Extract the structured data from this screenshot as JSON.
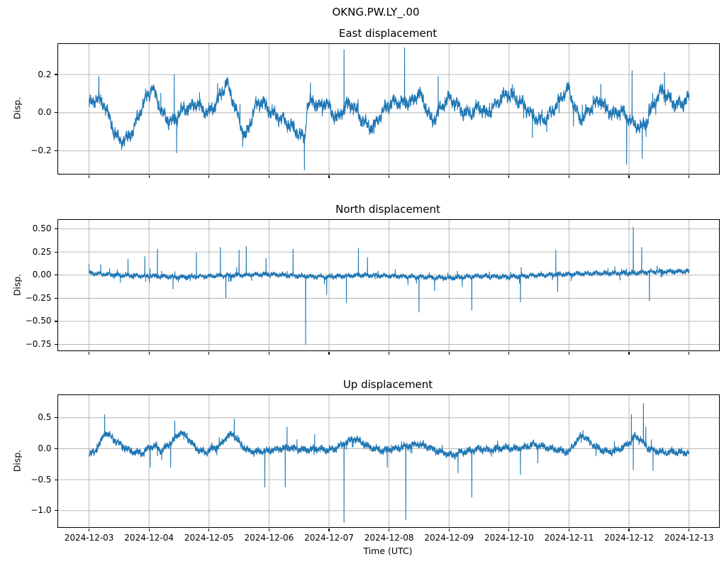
{
  "figure": {
    "suptitle": "OKNG.PW.LY_.00",
    "xlabel": "Time (UTC)",
    "samples": 5500,
    "x_unit": "days since 2024-12-03 00:00 UTC",
    "xlim": [
      -0.515,
      10.5
    ],
    "xticks": [
      {
        "pos": 0,
        "label": "2024-12-03"
      },
      {
        "pos": 1,
        "label": "2024-12-04"
      },
      {
        "pos": 2,
        "label": "2024-12-05"
      },
      {
        "pos": 3,
        "label": "2024-12-06"
      },
      {
        "pos": 4,
        "label": "2024-12-07"
      },
      {
        "pos": 5,
        "label": "2024-12-08"
      },
      {
        "pos": 6,
        "label": "2024-12-09"
      },
      {
        "pos": 7,
        "label": "2024-12-10"
      },
      {
        "pos": 8,
        "label": "2024-12-11"
      },
      {
        "pos": 9,
        "label": "2024-12-12"
      },
      {
        "pos": 10,
        "label": "2024-12-13"
      }
    ],
    "colors": {
      "line": "#1f77b4",
      "grid": "#b0b0b0",
      "spine": "#000000",
      "background": "#ffffff"
    },
    "grid": true,
    "legend": false
  },
  "chart_data": [
    {
      "type": "line",
      "name": "east-displacement",
      "title": "East displacement",
      "ylabel": "Disp.",
      "xlabel": "",
      "ylim": [
        -0.32,
        0.36
      ],
      "yticks": [
        {
          "pos": 0.2,
          "label": "0.2"
        },
        {
          "pos": 0.0,
          "label": "0.0"
        },
        {
          "pos": -0.2,
          "label": "−0.2"
        }
      ],
      "series": {
        "seed": 101,
        "noise": {
          "hf": 0.02,
          "wob": 0.016,
          "hair_p": 0.01,
          "hair_amp": 0.09
        },
        "anchors": [
          [
            0,
            0.05
          ],
          [
            0.12,
            0.07
          ],
          [
            0.22,
            0.06
          ],
          [
            0.3,
            0.01
          ],
          [
            0.42,
            -0.1
          ],
          [
            0.52,
            -0.15
          ],
          [
            0.62,
            -0.14
          ],
          [
            0.72,
            -0.1
          ],
          [
            0.82,
            -0.02
          ],
          [
            0.95,
            0.08
          ],
          [
            1.05,
            0.13
          ],
          [
            1.12,
            0.08
          ],
          [
            1.22,
            0.0
          ],
          [
            1.32,
            -0.04
          ],
          [
            1.42,
            -0.05
          ],
          [
            1.5,
            0.0
          ],
          [
            1.6,
            0.02
          ],
          [
            1.7,
            0.03
          ],
          [
            1.8,
            0.05
          ],
          [
            1.9,
            0.01
          ],
          [
            2.0,
            0.0
          ],
          [
            2.1,
            0.04
          ],
          [
            2.2,
            0.1
          ],
          [
            2.3,
            0.16
          ],
          [
            2.38,
            0.08
          ],
          [
            2.5,
            -0.04
          ],
          [
            2.6,
            -0.13
          ],
          [
            2.68,
            -0.06
          ],
          [
            2.78,
            0.04
          ],
          [
            2.88,
            0.06
          ],
          [
            2.98,
            0.02
          ],
          [
            3.1,
            -0.01
          ],
          [
            3.25,
            -0.04
          ],
          [
            3.4,
            -0.08
          ],
          [
            3.52,
            -0.12
          ],
          [
            3.6,
            -0.13
          ],
          [
            3.63,
            0.03
          ],
          [
            3.72,
            0.06
          ],
          [
            3.85,
            0.03
          ],
          [
            3.95,
            0.06
          ],
          [
            4.05,
            0.0
          ],
          [
            4.15,
            -0.03
          ],
          [
            4.28,
            0.04
          ],
          [
            4.4,
            0.04
          ],
          [
            4.5,
            -0.02
          ],
          [
            4.62,
            -0.06
          ],
          [
            4.72,
            -0.08
          ],
          [
            4.85,
            -0.02
          ],
          [
            4.95,
            0.03
          ],
          [
            5.1,
            0.06
          ],
          [
            5.25,
            0.05
          ],
          [
            5.4,
            0.06
          ],
          [
            5.5,
            0.11
          ],
          [
            5.6,
            0.04
          ],
          [
            5.72,
            -0.05
          ],
          [
            5.85,
            0.02
          ],
          [
            6.0,
            0.08
          ],
          [
            6.1,
            0.05
          ],
          [
            6.25,
            0.0
          ],
          [
            6.4,
            0.0
          ],
          [
            6.5,
            0.04
          ],
          [
            6.62,
            -0.01
          ],
          [
            6.75,
            0.03
          ],
          [
            6.88,
            0.08
          ],
          [
            7.0,
            0.1
          ],
          [
            7.12,
            0.07
          ],
          [
            7.25,
            0.04
          ],
          [
            7.38,
            -0.01
          ],
          [
            7.5,
            -0.04
          ],
          [
            7.62,
            -0.03
          ],
          [
            7.75,
            0.02
          ],
          [
            7.88,
            0.08
          ],
          [
            7.98,
            0.13
          ],
          [
            8.08,
            0.04
          ],
          [
            8.18,
            -0.04
          ],
          [
            8.3,
            0.0
          ],
          [
            8.42,
            0.04
          ],
          [
            8.52,
            0.07
          ],
          [
            8.62,
            0.02
          ],
          [
            8.75,
            -0.01
          ],
          [
            8.88,
            0.01
          ],
          [
            8.98,
            -0.03
          ],
          [
            9.1,
            -0.06
          ],
          [
            9.2,
            -0.08
          ],
          [
            9.3,
            -0.04
          ],
          [
            9.42,
            0.05
          ],
          [
            9.55,
            0.12
          ],
          [
            9.65,
            0.08
          ],
          [
            9.78,
            0.04
          ],
          [
            9.9,
            0.05
          ],
          [
            10,
            0.08
          ]
        ],
        "spikes": [
          [
            1.42,
            0.2
          ],
          [
            1.46,
            -0.21
          ],
          [
            3.59,
            -0.3
          ],
          [
            4.25,
            0.33
          ],
          [
            5.26,
            0.34
          ],
          [
            5.82,
            0.19
          ],
          [
            7.39,
            -0.13
          ],
          [
            8.53,
            0.15
          ],
          [
            8.96,
            -0.27
          ],
          [
            9.05,
            0.22
          ],
          [
            9.22,
            -0.24
          ],
          [
            9.59,
            0.21
          ]
        ]
      }
    },
    {
      "type": "line",
      "name": "north-displacement",
      "title": "North displacement",
      "ylabel": "Disp.",
      "xlabel": "",
      "ylim": [
        -0.815,
        0.597
      ],
      "yticks": [
        {
          "pos": 0.5,
          "label": "0.50"
        },
        {
          "pos": 0.25,
          "label": "0.25"
        },
        {
          "pos": 0.0,
          "label": "0.00"
        },
        {
          "pos": -0.25,
          "label": "−0.25"
        },
        {
          "pos": -0.5,
          "label": "−0.50"
        },
        {
          "pos": -0.75,
          "label": "−0.75"
        }
      ],
      "series": {
        "seed": 202,
        "noise": {
          "hf": 0.017,
          "wob": 0.01,
          "hair_p": 0.012,
          "hair_amp": 0.08
        },
        "anchors": [
          [
            0,
            0.02
          ],
          [
            0.5,
            0
          ],
          [
            1,
            -0.01
          ],
          [
            1.5,
            -0.02
          ],
          [
            2,
            -0.01
          ],
          [
            2.5,
            0
          ],
          [
            3,
            0.01
          ],
          [
            3.5,
            -0.01
          ],
          [
            4,
            -0.02
          ],
          [
            4.5,
            0
          ],
          [
            5,
            -0.01
          ],
          [
            5.5,
            -0.02
          ],
          [
            6,
            -0.03
          ],
          [
            6.5,
            -0.01
          ],
          [
            7,
            -0.02
          ],
          [
            7.5,
            0
          ],
          [
            8,
            0.01
          ],
          [
            8.5,
            0.02
          ],
          [
            9,
            0.02
          ],
          [
            9.5,
            0.04
          ],
          [
            10,
            0.04
          ]
        ],
        "spikes": [
          [
            0.0,
            0.12
          ],
          [
            0.65,
            0.17
          ],
          [
            0.93,
            0.2
          ],
          [
            1.14,
            0.28
          ],
          [
            1.4,
            -0.15
          ],
          [
            1.79,
            0.24
          ],
          [
            2.19,
            0.3
          ],
          [
            2.28,
            -0.25
          ],
          [
            2.5,
            0.27
          ],
          [
            2.62,
            0.31
          ],
          [
            2.95,
            0.18
          ],
          [
            3.4,
            0.28
          ],
          [
            3.61,
            -0.75
          ],
          [
            3.96,
            -0.21
          ],
          [
            4.29,
            -0.3
          ],
          [
            4.49,
            0.29
          ],
          [
            4.64,
            0.19
          ],
          [
            5.5,
            -0.4
          ],
          [
            5.76,
            -0.17
          ],
          [
            6.38,
            -0.38
          ],
          [
            7.19,
            -0.29
          ],
          [
            7.78,
            0.27
          ],
          [
            7.81,
            -0.18
          ],
          [
            9.07,
            0.52
          ],
          [
            9.21,
            0.3
          ],
          [
            9.34,
            -0.28
          ]
        ]
      }
    },
    {
      "type": "line",
      "name": "up-displacement",
      "title": "Up displacement",
      "ylabel": "Disp.",
      "xlabel": "Time (UTC)",
      "ylim": [
        -1.265,
        0.865
      ],
      "yticks": [
        {
          "pos": 0.5,
          "label": "0.5"
        },
        {
          "pos": 0.0,
          "label": "0.0"
        },
        {
          "pos": -0.5,
          "label": "−0.5"
        },
        {
          "pos": -1.0,
          "label": "−1.0"
        }
      ],
      "series": {
        "seed": 303,
        "noise": {
          "hf": 0.038,
          "wob": 0.022,
          "hair_p": 0.01,
          "hair_amp": 0.14
        },
        "anchors": [
          [
            0,
            -0.1
          ],
          [
            0.1,
            -0.05
          ],
          [
            0.2,
            0.12
          ],
          [
            0.27,
            0.27
          ],
          [
            0.35,
            0.2
          ],
          [
            0.45,
            0.12
          ],
          [
            0.55,
            0.05
          ],
          [
            0.68,
            -0.03
          ],
          [
            0.8,
            -0.06
          ],
          [
            0.9,
            -0.07
          ],
          [
            1.0,
            0.02
          ],
          [
            1.1,
            0.05
          ],
          [
            1.2,
            -0.04
          ],
          [
            1.3,
            0.05
          ],
          [
            1.42,
            0.15
          ],
          [
            1.52,
            0.27
          ],
          [
            1.62,
            0.2
          ],
          [
            1.72,
            0.08
          ],
          [
            1.85,
            -0.04
          ],
          [
            1.95,
            -0.06
          ],
          [
            2.05,
            0.0
          ],
          [
            2.18,
            0.05
          ],
          [
            2.3,
            0.2
          ],
          [
            2.4,
            0.24
          ],
          [
            2.5,
            0.1
          ],
          [
            2.62,
            -0.02
          ],
          [
            2.75,
            -0.05
          ],
          [
            2.9,
            -0.04
          ],
          [
            3.05,
            -0.02
          ],
          [
            3.2,
            0.0
          ],
          [
            3.35,
            0.02
          ],
          [
            3.5,
            -0.01
          ],
          [
            3.65,
            -0.02
          ],
          [
            3.8,
            0.0
          ],
          [
            3.95,
            -0.02
          ],
          [
            4.1,
            0.0
          ],
          [
            4.25,
            0.08
          ],
          [
            4.4,
            0.16
          ],
          [
            4.5,
            0.13
          ],
          [
            4.62,
            0.05
          ],
          [
            4.75,
            0.0
          ],
          [
            4.9,
            -0.03
          ],
          [
            5.05,
            -0.01
          ],
          [
            5.2,
            0.02
          ],
          [
            5.35,
            0.05
          ],
          [
            5.5,
            0.08
          ],
          [
            5.62,
            0.04
          ],
          [
            5.75,
            -0.02
          ],
          [
            5.9,
            -0.06
          ],
          [
            6.05,
            -0.11
          ],
          [
            6.2,
            -0.06
          ],
          [
            6.35,
            -0.03
          ],
          [
            6.5,
            0.0
          ],
          [
            6.65,
            -0.02
          ],
          [
            6.8,
            0.0
          ],
          [
            6.95,
            0.02
          ],
          [
            7.1,
            0.0
          ],
          [
            7.25,
            0.02
          ],
          [
            7.4,
            0.07
          ],
          [
            7.55,
            0.04
          ],
          [
            7.7,
            0.0
          ],
          [
            7.85,
            -0.03
          ],
          [
            8.0,
            -0.05
          ],
          [
            8.1,
            0.1
          ],
          [
            8.22,
            0.22
          ],
          [
            8.35,
            0.1
          ],
          [
            8.5,
            0.0
          ],
          [
            8.65,
            -0.05
          ],
          [
            8.8,
            -0.03
          ],
          [
            8.95,
            0.05
          ],
          [
            9.1,
            0.2
          ],
          [
            9.2,
            0.15
          ],
          [
            9.3,
            0.02
          ],
          [
            9.45,
            -0.04
          ],
          [
            9.6,
            -0.06
          ],
          [
            9.75,
            -0.05
          ],
          [
            9.9,
            -0.06
          ],
          [
            10,
            -0.07
          ]
        ],
        "spikes": [
          [
            0.26,
            0.55
          ],
          [
            1.02,
            -0.3
          ],
          [
            1.36,
            -0.3
          ],
          [
            1.43,
            0.45
          ],
          [
            2.42,
            0.48
          ],
          [
            2.93,
            -0.62
          ],
          [
            3.27,
            -0.62
          ],
          [
            3.3,
            0.35
          ],
          [
            3.76,
            0.23
          ],
          [
            4.25,
            -1.19
          ],
          [
            4.97,
            -0.3
          ],
          [
            5.28,
            -1.15
          ],
          [
            6.15,
            -0.39
          ],
          [
            6.38,
            -0.78
          ],
          [
            7.19,
            -0.42
          ],
          [
            7.48,
            -0.23
          ],
          [
            9.04,
            0.55
          ],
          [
            9.07,
            -0.34
          ],
          [
            9.24,
            0.73
          ],
          [
            9.28,
            0.35
          ],
          [
            9.4,
            -0.35
          ]
        ]
      }
    }
  ]
}
